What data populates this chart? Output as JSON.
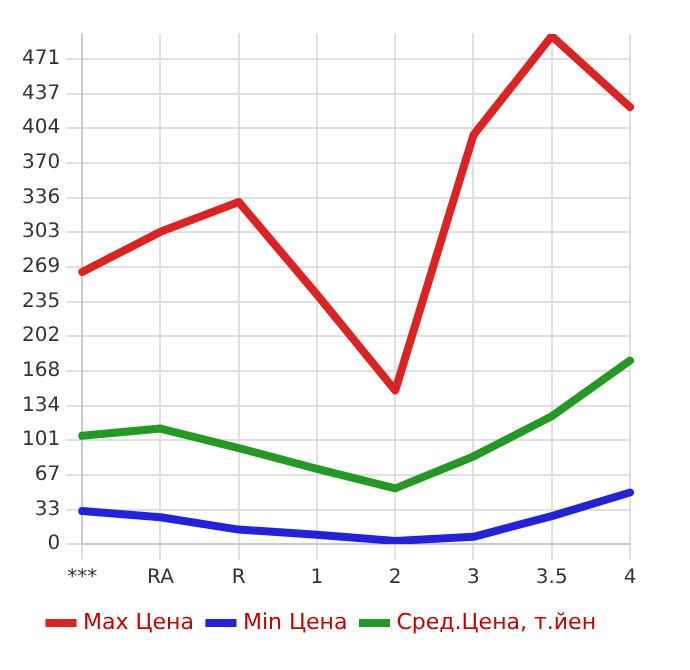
{
  "chart_data": {
    "type": "line",
    "categories": [
      "***",
      "RA",
      "R",
      "1",
      "2",
      "3",
      "3.5",
      "4"
    ],
    "series": [
      {
        "name": "Max Цена",
        "color": "#dd2222",
        "values": [
          264,
          303,
          332,
          242,
          149,
          397,
          493,
          424
        ]
      },
      {
        "name": "Min Цена",
        "color": "#2222dd",
        "values": [
          32,
          26,
          14,
          9,
          3,
          7,
          27,
          50
        ]
      },
      {
        "name": "Сред.Цена, т.йен",
        "color": "#229922",
        "values": [
          105,
          112,
          93,
          73,
          54,
          85,
          124,
          178
        ]
      }
    ],
    "ylim": [
      0,
      495
    ],
    "yticks": [
      0,
      33,
      67,
      101,
      134,
      168,
      202,
      235,
      269,
      303,
      336,
      370,
      404,
      437,
      471
    ],
    "grid": true,
    "legend": "bottom",
    "marker": "none",
    "line_style": "solid"
  }
}
